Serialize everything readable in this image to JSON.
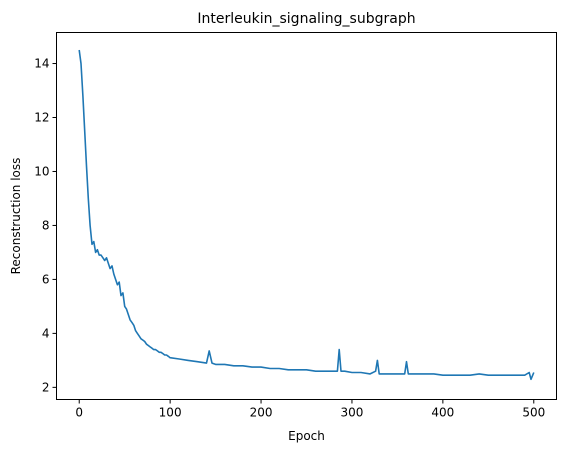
{
  "chart_data": {
    "type": "line",
    "title": "Interleukin_signaling_subgraph",
    "xlabel": "Epoch",
    "ylabel": "Reconstruction loss",
    "xlim": [
      -25,
      525
    ],
    "ylim": [
      1.55,
      15.15
    ],
    "xticks": [
      0,
      100,
      200,
      300,
      400,
      500
    ],
    "yticks": [
      2,
      4,
      6,
      8,
      10,
      12,
      14
    ],
    "grid": false,
    "legend": "none",
    "series": [
      {
        "color": "#1f77b4",
        "x": [
          0,
          2,
          4,
          6,
          8,
          10,
          12,
          14,
          16,
          18,
          20,
          22,
          24,
          26,
          28,
          30,
          32,
          34,
          36,
          38,
          40,
          42,
          44,
          46,
          48,
          50,
          52,
          54,
          56,
          58,
          60,
          62,
          64,
          66,
          68,
          70,
          72,
          74,
          76,
          78,
          80,
          82,
          84,
          86,
          88,
          90,
          92,
          94,
          96,
          98,
          100,
          110,
          120,
          130,
          140,
          143,
          146,
          150,
          160,
          170,
          180,
          190,
          200,
          210,
          220,
          230,
          240,
          250,
          260,
          270,
          280,
          284,
          286,
          288,
          292,
          300,
          310,
          320,
          326,
          328,
          330,
          334,
          340,
          350,
          358,
          360,
          362,
          370,
          380,
          390,
          400,
          410,
          420,
          430,
          440,
          450,
          460,
          470,
          480,
          490,
          495,
          497,
          500
        ],
        "y": [
          14.5,
          14.0,
          12.8,
          11.5,
          10.2,
          9.0,
          8.0,
          7.3,
          7.4,
          7.0,
          7.1,
          6.9,
          6.9,
          6.8,
          6.7,
          6.8,
          6.6,
          6.4,
          6.5,
          6.2,
          6.0,
          5.8,
          5.9,
          5.4,
          5.5,
          5.0,
          4.9,
          4.7,
          4.5,
          4.4,
          4.3,
          4.1,
          4.0,
          3.9,
          3.8,
          3.75,
          3.7,
          3.6,
          3.55,
          3.5,
          3.45,
          3.4,
          3.4,
          3.35,
          3.3,
          3.3,
          3.25,
          3.2,
          3.2,
          3.15,
          3.1,
          3.05,
          3.0,
          2.95,
          2.9,
          3.35,
          2.9,
          2.85,
          2.85,
          2.8,
          2.8,
          2.75,
          2.75,
          2.7,
          2.7,
          2.65,
          2.65,
          2.65,
          2.6,
          2.6,
          2.6,
          2.6,
          3.4,
          2.6,
          2.6,
          2.55,
          2.55,
          2.5,
          2.6,
          3.0,
          2.5,
          2.5,
          2.5,
          2.5,
          2.5,
          2.95,
          2.5,
          2.5,
          2.5,
          2.5,
          2.45,
          2.45,
          2.45,
          2.45,
          2.5,
          2.45,
          2.45,
          2.45,
          2.45,
          2.45,
          2.55,
          2.3,
          2.55
        ]
      }
    ]
  }
}
